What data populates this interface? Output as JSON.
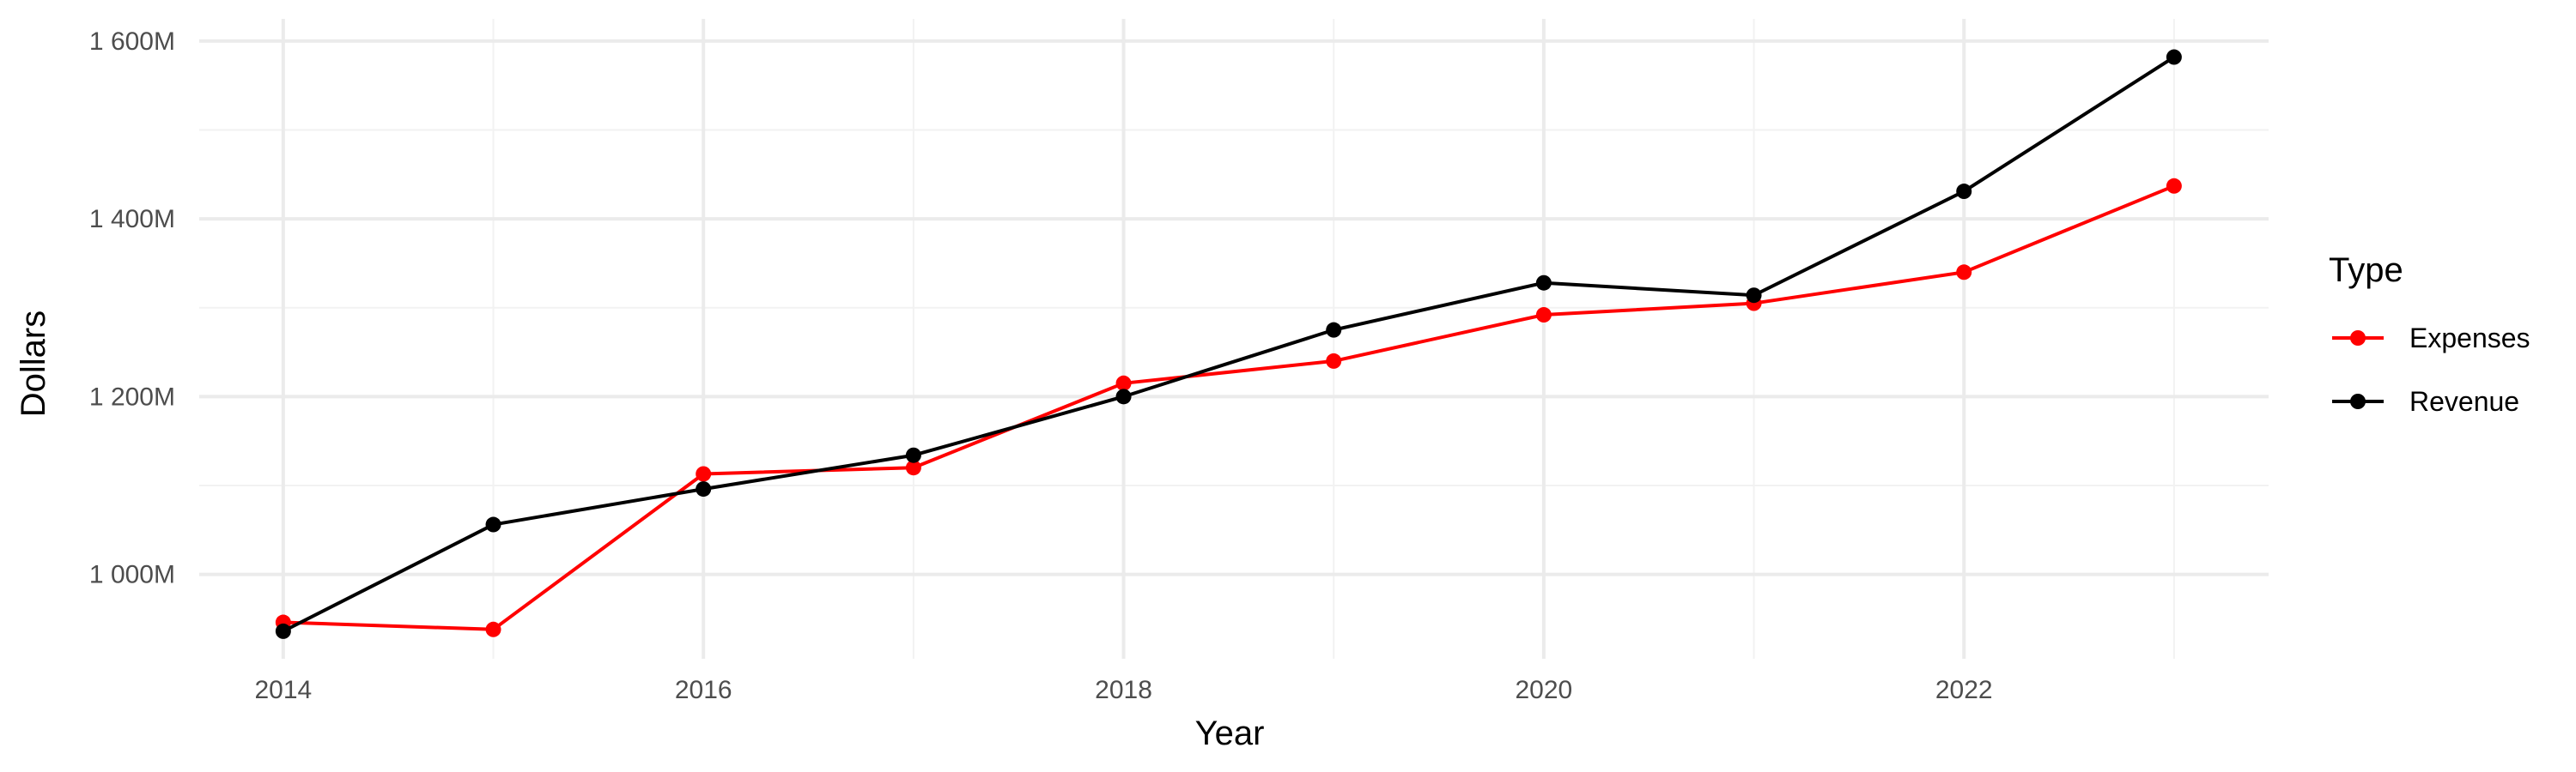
{
  "chart_data": {
    "type": "line",
    "title": "",
    "xlabel": "Year",
    "ylabel": "Dollars",
    "x": [
      2014,
      2015,
      2016,
      2017,
      2018,
      2019,
      2020,
      2021,
      2022,
      2023
    ],
    "xlim": [
      2013.6,
      2023.45
    ],
    "ylim": [
      905,
      1625
    ],
    "x_ticks": [
      2014,
      2016,
      2018,
      2020,
      2022
    ],
    "x_minor_ticks": [
      2015,
      2017,
      2019,
      2021,
      2023
    ],
    "y_ticks": [
      1000,
      1200,
      1400,
      1600
    ],
    "y_minor_ticks": [
      1100,
      1300,
      1500
    ],
    "y_tick_labels": [
      "1 000M",
      "1 200M",
      "1 400M",
      "1 600M"
    ],
    "grid": true,
    "legend": {
      "title": "Type",
      "position": "right",
      "entries": [
        "Expenses",
        "Revenue"
      ]
    },
    "series": [
      {
        "name": "Expenses",
        "color": "#ff0000",
        "values": [
          946,
          938,
          1113,
          1120,
          1215,
          1240,
          1292,
          1305,
          1340,
          1437
        ]
      },
      {
        "name": "Revenue",
        "color": "#000000",
        "values": [
          936,
          1056,
          1096,
          1134,
          1200,
          1275,
          1328,
          1314,
          1431,
          1582
        ]
      }
    ]
  }
}
